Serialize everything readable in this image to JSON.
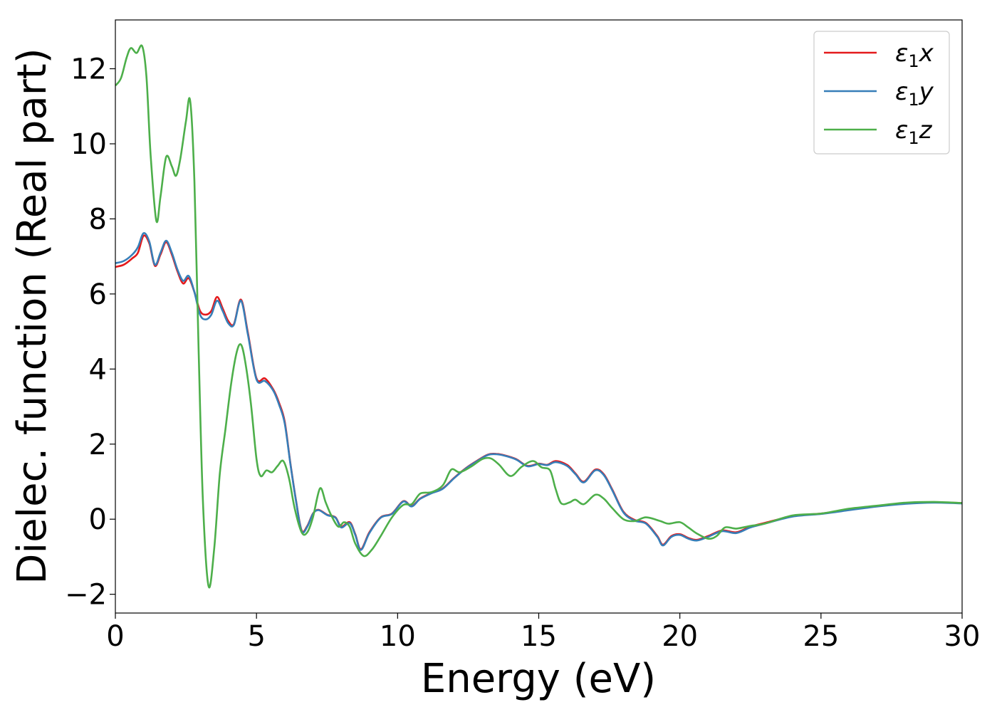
{
  "chart_data": {
    "type": "line",
    "title": "",
    "xlabel": "Energy (eV)",
    "ylabel": "Dielec. function (Real part)",
    "xlim": [
      0,
      30
    ],
    "ylim": [
      -2.5,
      13.3
    ],
    "xticks": [
      0,
      5,
      10,
      15,
      20,
      25,
      30
    ],
    "xtick_labels": [
      "0",
      "5",
      "10",
      "15",
      "20",
      "25",
      "30"
    ],
    "yticks": [
      -2,
      0,
      2,
      4,
      6,
      8,
      10,
      12
    ],
    "ytick_labels": [
      "−2",
      "0",
      "2",
      "4",
      "6",
      "8",
      "10",
      "12"
    ],
    "grid": false,
    "legend_position": "top-right",
    "series": [
      {
        "name": "ε₁x",
        "legend_base": "ε",
        "legend_sub": "1",
        "legend_tail": "x",
        "color": "#e41a1c",
        "points": [
          [
            0,
            6.72
          ],
          [
            0.3,
            6.78
          ],
          [
            0.6,
            6.95
          ],
          [
            0.8,
            7.1
          ],
          [
            1.0,
            7.55
          ],
          [
            1.2,
            7.35
          ],
          [
            1.4,
            6.75
          ],
          [
            1.6,
            7.05
          ],
          [
            1.8,
            7.38
          ],
          [
            2.0,
            7.05
          ],
          [
            2.2,
            6.6
          ],
          [
            2.4,
            6.28
          ],
          [
            2.6,
            6.42
          ],
          [
            2.8,
            6.05
          ],
          [
            3.0,
            5.55
          ],
          [
            3.2,
            5.45
          ],
          [
            3.4,
            5.55
          ],
          [
            3.6,
            5.92
          ],
          [
            3.8,
            5.62
          ],
          [
            4.0,
            5.28
          ],
          [
            4.2,
            5.2
          ],
          [
            4.45,
            5.85
          ],
          [
            4.7,
            4.95
          ],
          [
            5.0,
            3.75
          ],
          [
            5.3,
            3.75
          ],
          [
            5.6,
            3.45
          ],
          [
            5.8,
            3.1
          ],
          [
            6.0,
            2.6
          ],
          [
            6.2,
            1.5
          ],
          [
            6.4,
            0.5
          ],
          [
            6.6,
            -0.3
          ],
          [
            6.8,
            -0.18
          ],
          [
            7.0,
            0.15
          ],
          [
            7.2,
            0.25
          ],
          [
            7.5,
            0.12
          ],
          [
            7.8,
            0.05
          ],
          [
            8.0,
            -0.2
          ],
          [
            8.3,
            -0.08
          ],
          [
            8.5,
            -0.4
          ],
          [
            8.7,
            -0.8
          ],
          [
            9.0,
            -0.35
          ],
          [
            9.4,
            0.05
          ],
          [
            9.8,
            0.15
          ],
          [
            10.2,
            0.48
          ],
          [
            10.5,
            0.35
          ],
          [
            10.8,
            0.55
          ],
          [
            11.2,
            0.7
          ],
          [
            11.6,
            0.82
          ],
          [
            12.0,
            1.1
          ],
          [
            12.4,
            1.35
          ],
          [
            12.8,
            1.55
          ],
          [
            13.2,
            1.72
          ],
          [
            13.5,
            1.74
          ],
          [
            13.8,
            1.7
          ],
          [
            14.2,
            1.6
          ],
          [
            14.6,
            1.42
          ],
          [
            15.0,
            1.48
          ],
          [
            15.3,
            1.45
          ],
          [
            15.6,
            1.55
          ],
          [
            16.0,
            1.45
          ],
          [
            16.3,
            1.22
          ],
          [
            16.6,
            1.0
          ],
          [
            17.0,
            1.32
          ],
          [
            17.3,
            1.2
          ],
          [
            17.6,
            0.8
          ],
          [
            18.0,
            0.2
          ],
          [
            18.4,
            -0.02
          ],
          [
            18.8,
            -0.1
          ],
          [
            19.2,
            -0.45
          ],
          [
            19.4,
            -0.68
          ],
          [
            19.7,
            -0.45
          ],
          [
            20.0,
            -0.4
          ],
          [
            20.3,
            -0.5
          ],
          [
            20.6,
            -0.55
          ],
          [
            21.0,
            -0.45
          ],
          [
            21.5,
            -0.3
          ],
          [
            22.0,
            -0.35
          ],
          [
            22.5,
            -0.2
          ],
          [
            23.0,
            -0.1
          ],
          [
            24.0,
            0.08
          ],
          [
            25.0,
            0.15
          ],
          [
            26.0,
            0.25
          ],
          [
            27.0,
            0.35
          ],
          [
            28.0,
            0.42
          ],
          [
            29.0,
            0.45
          ],
          [
            30.0,
            0.43
          ]
        ]
      },
      {
        "name": "ε₁y",
        "legend_base": "ε",
        "legend_sub": "1",
        "legend_tail": "y",
        "color": "#377eb8",
        "points": [
          [
            0,
            6.82
          ],
          [
            0.3,
            6.88
          ],
          [
            0.6,
            7.05
          ],
          [
            0.8,
            7.25
          ],
          [
            1.0,
            7.62
          ],
          [
            1.2,
            7.4
          ],
          [
            1.4,
            6.78
          ],
          [
            1.6,
            7.1
          ],
          [
            1.8,
            7.42
          ],
          [
            2.0,
            7.1
          ],
          [
            2.2,
            6.65
          ],
          [
            2.4,
            6.35
          ],
          [
            2.6,
            6.48
          ],
          [
            2.8,
            6.05
          ],
          [
            3.0,
            5.45
          ],
          [
            3.2,
            5.32
          ],
          [
            3.4,
            5.45
          ],
          [
            3.6,
            5.82
          ],
          [
            3.8,
            5.55
          ],
          [
            4.0,
            5.22
          ],
          [
            4.2,
            5.18
          ],
          [
            4.45,
            5.82
          ],
          [
            4.7,
            4.9
          ],
          [
            5.0,
            3.72
          ],
          [
            5.3,
            3.68
          ],
          [
            5.6,
            3.42
          ],
          [
            5.8,
            3.05
          ],
          [
            6.0,
            2.55
          ],
          [
            6.2,
            1.48
          ],
          [
            6.4,
            0.48
          ],
          [
            6.6,
            -0.32
          ],
          [
            6.8,
            -0.2
          ],
          [
            7.0,
            0.14
          ],
          [
            7.2,
            0.24
          ],
          [
            7.5,
            0.11
          ],
          [
            7.8,
            0.04
          ],
          [
            8.0,
            -0.22
          ],
          [
            8.3,
            -0.1
          ],
          [
            8.5,
            -0.42
          ],
          [
            8.7,
            -0.82
          ],
          [
            9.0,
            -0.37
          ],
          [
            9.4,
            0.04
          ],
          [
            9.8,
            0.14
          ],
          [
            10.2,
            0.47
          ],
          [
            10.5,
            0.34
          ],
          [
            10.8,
            0.54
          ],
          [
            11.2,
            0.69
          ],
          [
            11.6,
            0.81
          ],
          [
            12.0,
            1.09
          ],
          [
            12.4,
            1.34
          ],
          [
            12.8,
            1.54
          ],
          [
            13.2,
            1.71
          ],
          [
            13.5,
            1.73
          ],
          [
            13.8,
            1.69
          ],
          [
            14.2,
            1.59
          ],
          [
            14.6,
            1.41
          ],
          [
            15.0,
            1.47
          ],
          [
            15.3,
            1.44
          ],
          [
            15.6,
            1.52
          ],
          [
            16.0,
            1.42
          ],
          [
            16.3,
            1.2
          ],
          [
            16.6,
            0.98
          ],
          [
            17.0,
            1.3
          ],
          [
            17.3,
            1.18
          ],
          [
            17.6,
            0.78
          ],
          [
            18.0,
            0.18
          ],
          [
            18.4,
            -0.04
          ],
          [
            18.8,
            -0.12
          ],
          [
            19.2,
            -0.47
          ],
          [
            19.4,
            -0.7
          ],
          [
            19.7,
            -0.47
          ],
          [
            20.0,
            -0.42
          ],
          [
            20.3,
            -0.52
          ],
          [
            20.6,
            -0.57
          ],
          [
            21.0,
            -0.47
          ],
          [
            21.5,
            -0.32
          ],
          [
            22.0,
            -0.37
          ],
          [
            22.5,
            -0.22
          ],
          [
            23.0,
            -0.12
          ],
          [
            24.0,
            0.07
          ],
          [
            25.0,
            0.14
          ],
          [
            26.0,
            0.24
          ],
          [
            27.0,
            0.34
          ],
          [
            28.0,
            0.41
          ],
          [
            29.0,
            0.44
          ],
          [
            30.0,
            0.42
          ]
        ]
      },
      {
        "name": "ε₁z",
        "legend_base": "ε",
        "legend_sub": "1",
        "legend_tail": "z",
        "color": "#4daf4a",
        "points": [
          [
            0,
            11.55
          ],
          [
            0.2,
            11.75
          ],
          [
            0.4,
            12.3
          ],
          [
            0.55,
            12.55
          ],
          [
            0.75,
            12.42
          ],
          [
            0.95,
            12.6
          ],
          [
            1.1,
            11.8
          ],
          [
            1.25,
            9.7
          ],
          [
            1.45,
            7.95
          ],
          [
            1.6,
            8.6
          ],
          [
            1.8,
            9.65
          ],
          [
            2.0,
            9.4
          ],
          [
            2.15,
            9.15
          ],
          [
            2.3,
            9.6
          ],
          [
            2.5,
            10.6
          ],
          [
            2.65,
            11.15
          ],
          [
            2.8,
            9.0
          ],
          [
            2.95,
            4.5
          ],
          [
            3.1,
            0.5
          ],
          [
            3.3,
            -1.78
          ],
          [
            3.5,
            -0.8
          ],
          [
            3.7,
            1.2
          ],
          [
            3.9,
            2.4
          ],
          [
            4.1,
            3.6
          ],
          [
            4.3,
            4.45
          ],
          [
            4.45,
            4.65
          ],
          [
            4.6,
            4.2
          ],
          [
            4.8,
            3.1
          ],
          [
            5.0,
            1.6
          ],
          [
            5.15,
            1.15
          ],
          [
            5.35,
            1.3
          ],
          [
            5.55,
            1.25
          ],
          [
            5.75,
            1.42
          ],
          [
            5.95,
            1.55
          ],
          [
            6.15,
            1.1
          ],
          [
            6.35,
            0.3
          ],
          [
            6.6,
            -0.35
          ],
          [
            6.8,
            -0.35
          ],
          [
            7.0,
            0.05
          ],
          [
            7.25,
            0.82
          ],
          [
            7.45,
            0.45
          ],
          [
            7.65,
            0.1
          ],
          [
            7.9,
            -0.2
          ],
          [
            8.1,
            -0.08
          ],
          [
            8.3,
            -0.2
          ],
          [
            8.5,
            -0.65
          ],
          [
            8.8,
            -0.98
          ],
          [
            9.1,
            -0.8
          ],
          [
            9.4,
            -0.45
          ],
          [
            9.8,
            0.05
          ],
          [
            10.2,
            0.38
          ],
          [
            10.5,
            0.4
          ],
          [
            10.8,
            0.68
          ],
          [
            11.2,
            0.72
          ],
          [
            11.6,
            0.9
          ],
          [
            11.9,
            1.32
          ],
          [
            12.2,
            1.25
          ],
          [
            12.6,
            1.4
          ],
          [
            13.0,
            1.6
          ],
          [
            13.3,
            1.62
          ],
          [
            13.6,
            1.45
          ],
          [
            14.0,
            1.15
          ],
          [
            14.4,
            1.4
          ],
          [
            14.8,
            1.55
          ],
          [
            15.1,
            1.38
          ],
          [
            15.4,
            1.3
          ],
          [
            15.6,
            0.8
          ],
          [
            15.8,
            0.42
          ],
          [
            16.1,
            0.45
          ],
          [
            16.3,
            0.52
          ],
          [
            16.6,
            0.4
          ],
          [
            17.0,
            0.65
          ],
          [
            17.3,
            0.55
          ],
          [
            17.6,
            0.3
          ],
          [
            18.0,
            0.0
          ],
          [
            18.4,
            -0.05
          ],
          [
            18.8,
            0.05
          ],
          [
            19.3,
            -0.05
          ],
          [
            19.6,
            -0.12
          ],
          [
            20.0,
            -0.08
          ],
          [
            20.3,
            -0.22
          ],
          [
            20.6,
            -0.38
          ],
          [
            21.0,
            -0.52
          ],
          [
            21.3,
            -0.45
          ],
          [
            21.6,
            -0.22
          ],
          [
            22.0,
            -0.25
          ],
          [
            22.5,
            -0.18
          ],
          [
            23.0,
            -0.12
          ],
          [
            24.0,
            0.1
          ],
          [
            25.0,
            0.15
          ],
          [
            26.0,
            0.28
          ],
          [
            27.0,
            0.36
          ],
          [
            28.0,
            0.44
          ],
          [
            29.0,
            0.46
          ],
          [
            30.0,
            0.43
          ]
        ]
      }
    ]
  }
}
